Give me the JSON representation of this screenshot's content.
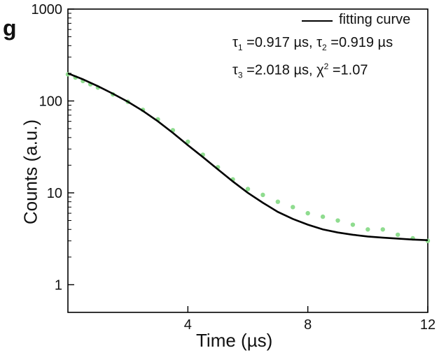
{
  "panel_label": "g",
  "chart_data": {
    "type": "scatter",
    "xlabel": "Time (µs)",
    "ylabel": "Counts (a.u.)",
    "x_scale": "linear",
    "y_scale": "log",
    "xlim": [
      0,
      12
    ],
    "ylim": [
      0.5,
      1000
    ],
    "x_ticks": [
      4,
      8,
      12
    ],
    "y_ticks": [
      1,
      10,
      100,
      1000
    ],
    "x_tick_labels": [
      "4",
      "8",
      "12"
    ],
    "y_tick_labels": [
      "1",
      "10",
      "100",
      "1000"
    ],
    "grid": false,
    "legend": {
      "position": "top-right",
      "entries": [
        {
          "label": "fitting curve",
          "style": "line"
        }
      ]
    },
    "annotations": {
      "tau1": "0.917 µs",
      "tau2": "0.919 µs",
      "tau3": "2.018 µs",
      "chi2": "1.07"
    },
    "series": [
      {
        "style": "points",
        "color": "#8fdc8f",
        "x": [
          0.0,
          0.25,
          0.5,
          0.75,
          1.0,
          1.5,
          2.0,
          2.5,
          3.0,
          3.5,
          4.0,
          4.5,
          5.0,
          5.5,
          6.0,
          6.5,
          7.0,
          7.5,
          8.0,
          8.5,
          9.0,
          9.5,
          10.0,
          10.5,
          11.0,
          11.5,
          12.0
        ],
        "y": [
          195,
          180,
          165,
          152,
          140,
          118,
          98,
          80,
          63,
          48,
          36,
          26,
          19,
          14,
          11,
          9.5,
          8,
          7,
          6,
          5.5,
          5,
          4.5,
          4,
          4,
          3.5,
          3.2,
          3
        ]
      },
      {
        "name": "fitting curve",
        "style": "line",
        "color": "#000000",
        "x": [
          0.0,
          0.5,
          1.0,
          1.5,
          2.0,
          2.5,
          3.0,
          3.5,
          4.0,
          4.5,
          5.0,
          5.5,
          6.0,
          6.5,
          7.0,
          7.5,
          8.0,
          8.5,
          9.0,
          9.5,
          10.0,
          10.5,
          11.0,
          11.5,
          12.0
        ],
        "y": [
          200,
          172,
          145,
          120,
          98,
          78,
          60,
          45,
          33,
          24.5,
          18,
          13.3,
          10,
          7.8,
          6.2,
          5.2,
          4.5,
          4.0,
          3.7,
          3.5,
          3.35,
          3.25,
          3.18,
          3.1,
          3.05
        ]
      }
    ],
    "colors": {
      "points": "#8fdc8f",
      "fit": "#000000",
      "axes": "#000000"
    }
  }
}
